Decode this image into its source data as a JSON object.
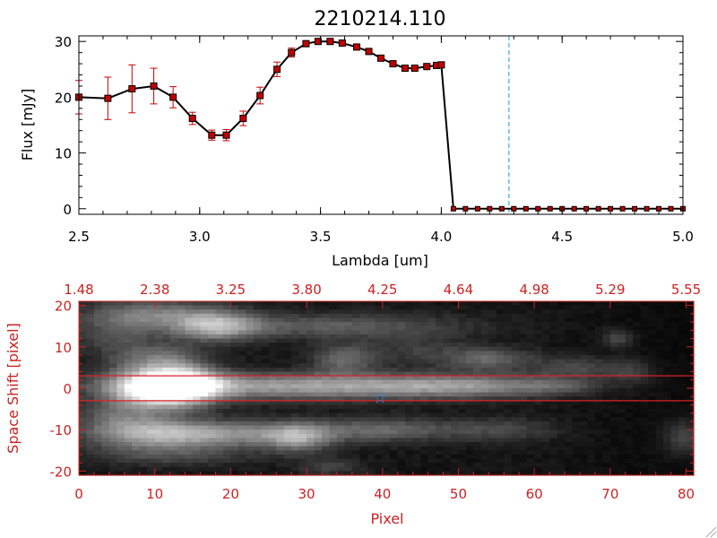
{
  "chart_data": [
    {
      "type": "line",
      "title": "2210214.110",
      "xlabel": "Lambda [um]",
      "ylabel": "Flux [mJy]",
      "xlim": [
        2.5,
        5.0
      ],
      "ylim": [
        -1,
        31
      ],
      "x_ticks": [
        "2.5",
        "3.0",
        "3.5",
        "4.0",
        "4.5",
        "5.0"
      ],
      "y_ticks": [
        "0",
        "10",
        "20",
        "30"
      ],
      "grid": false,
      "marker_color": "#c00000",
      "line_color": "#000000",
      "error_color": "#cc0000",
      "vline": {
        "x": 4.28,
        "color": "#1f8fe0",
        "style": "dashed"
      },
      "series": [
        {
          "x": [
            2.5,
            2.62,
            2.72,
            2.81,
            2.89,
            2.97,
            3.05,
            3.11,
            3.18,
            3.25,
            3.32,
            3.38,
            3.44,
            3.49,
            3.54,
            3.59,
            3.65,
            3.7,
            3.75,
            3.8,
            3.85,
            3.89,
            3.94,
            3.98,
            4.0,
            4.05,
            4.1,
            4.15,
            4.2,
            4.25,
            4.3,
            4.35,
            4.4,
            4.45,
            4.5,
            4.55,
            4.6,
            4.65,
            4.7,
            4.75,
            4.8,
            4.85,
            4.9,
            4.95,
            5.0
          ],
          "y": [
            20.0,
            19.8,
            21.5,
            22.0,
            20.0,
            16.2,
            13.2,
            13.2,
            16.2,
            20.3,
            25.0,
            28.0,
            29.6,
            30.0,
            30.0,
            29.7,
            29.0,
            28.2,
            27.0,
            26.0,
            25.2,
            25.2,
            25.5,
            25.7,
            25.8,
            0,
            0,
            0,
            0,
            0,
            0,
            0,
            0,
            0,
            0,
            0,
            0,
            0,
            0,
            0,
            0,
            0,
            0,
            0,
            0
          ],
          "yerr": [
            3.0,
            3.8,
            4.3,
            3.2,
            1.9,
            1.1,
            0.9,
            1.0,
            1.3,
            1.5,
            1.3,
            0.8,
            0.5,
            0.4,
            0.4,
            0.4,
            0.4,
            0.4,
            0.4,
            0.3,
            0.3,
            0.3,
            0.3,
            0.3,
            0.3,
            0,
            0,
            0,
            0,
            0,
            0,
            0,
            0,
            0,
            0,
            0,
            0,
            0,
            0,
            0,
            0,
            0,
            0,
            0,
            0
          ]
        }
      ]
    },
    {
      "type": "heatmap",
      "xlabel": "Pixel",
      "ylabel": "Space Shift [pixel]",
      "xlim": [
        0,
        81
      ],
      "ylim": [
        -21,
        21
      ],
      "x_ticks": [
        "0",
        "10",
        "20",
        "30",
        "40",
        "50",
        "60",
        "70",
        "80"
      ],
      "y_ticks": [
        "-20",
        "-10",
        "0",
        "10",
        "20"
      ],
      "top_ticks": [
        "1.48",
        "2.38",
        "3.25",
        "3.80",
        "4.25",
        "4.64",
        "4.98",
        "5.29",
        "5.55"
      ],
      "axis_color": "#cc2222",
      "colormap": "grayscale",
      "extraction_band": [
        -3,
        3
      ],
      "band_color": "#dd2222",
      "marker": {
        "symbol": "☆",
        "x": 39.7,
        "y": -2.3,
        "color": "#3a8fe0"
      },
      "sources": [
        {
          "x": 11,
          "y": 0,
          "sx": 4.5,
          "sy": 3.5,
          "amp": 1.0
        },
        {
          "x": 14,
          "y": 1,
          "sx": 3.5,
          "sy": 2.5,
          "amp": 0.4
        },
        {
          "x": 30,
          "y": 0.5,
          "sx": 18,
          "sy": 2.2,
          "amp": 0.55
        },
        {
          "x": 52,
          "y": 0.5,
          "sx": 9,
          "sy": 1.8,
          "amp": 0.28
        },
        {
          "x": 64,
          "y": 0.5,
          "sx": 3,
          "sy": 1.2,
          "amp": 0.15
        },
        {
          "x": 18,
          "y": 15,
          "sx": 4,
          "sy": 2.5,
          "amp": 0.55
        },
        {
          "x": 34,
          "y": 15,
          "sx": 12,
          "sy": 2.2,
          "amp": 0.28
        },
        {
          "x": 10,
          "y": 18,
          "sx": 6,
          "sy": 2.5,
          "amp": 0.35
        },
        {
          "x": 5,
          "y": 13,
          "sx": 4,
          "sy": 4,
          "amp": 0.22
        },
        {
          "x": 11,
          "y": 7,
          "sx": 4,
          "sy": 2.5,
          "amp": 0.3
        },
        {
          "x": 35,
          "y": 7,
          "sx": 3,
          "sy": 2.5,
          "amp": 0.32
        },
        {
          "x": 54,
          "y": 7,
          "sx": 4,
          "sy": 2,
          "amp": 0.3
        },
        {
          "x": 45,
          "y": 9,
          "sx": 5,
          "sy": 2.5,
          "amp": 0.15
        },
        {
          "x": 66,
          "y": 5,
          "sx": 4,
          "sy": 2,
          "amp": 0.25
        },
        {
          "x": 73,
          "y": 4,
          "sx": 2,
          "sy": 2,
          "amp": 0.25
        },
        {
          "x": 71,
          "y": 12,
          "sx": 1.5,
          "sy": 1.5,
          "amp": 0.3
        },
        {
          "x": 5,
          "y": -7,
          "sx": 4,
          "sy": 3,
          "amp": 0.25
        },
        {
          "x": 10,
          "y": -11,
          "sx": 6,
          "sy": 2.5,
          "amp": 0.5
        },
        {
          "x": 22,
          "y": -11,
          "sx": 8,
          "sy": 2.2,
          "amp": 0.4
        },
        {
          "x": 29,
          "y": -12,
          "sx": 3,
          "sy": 2.5,
          "amp": 0.38
        },
        {
          "x": 40,
          "y": -10,
          "sx": 6,
          "sy": 2,
          "amp": 0.3
        },
        {
          "x": 55,
          "y": -10,
          "sx": 6,
          "sy": 2,
          "amp": 0.2
        },
        {
          "x": 12,
          "y": -16,
          "sx": 8,
          "sy": 2,
          "amp": 0.2
        },
        {
          "x": 33,
          "y": -19,
          "sx": 3,
          "sy": 1.5,
          "amp": 0.18
        },
        {
          "x": 80,
          "y": -12,
          "sx": 2,
          "sy": 3,
          "amp": 0.45
        }
      ]
    }
  ]
}
